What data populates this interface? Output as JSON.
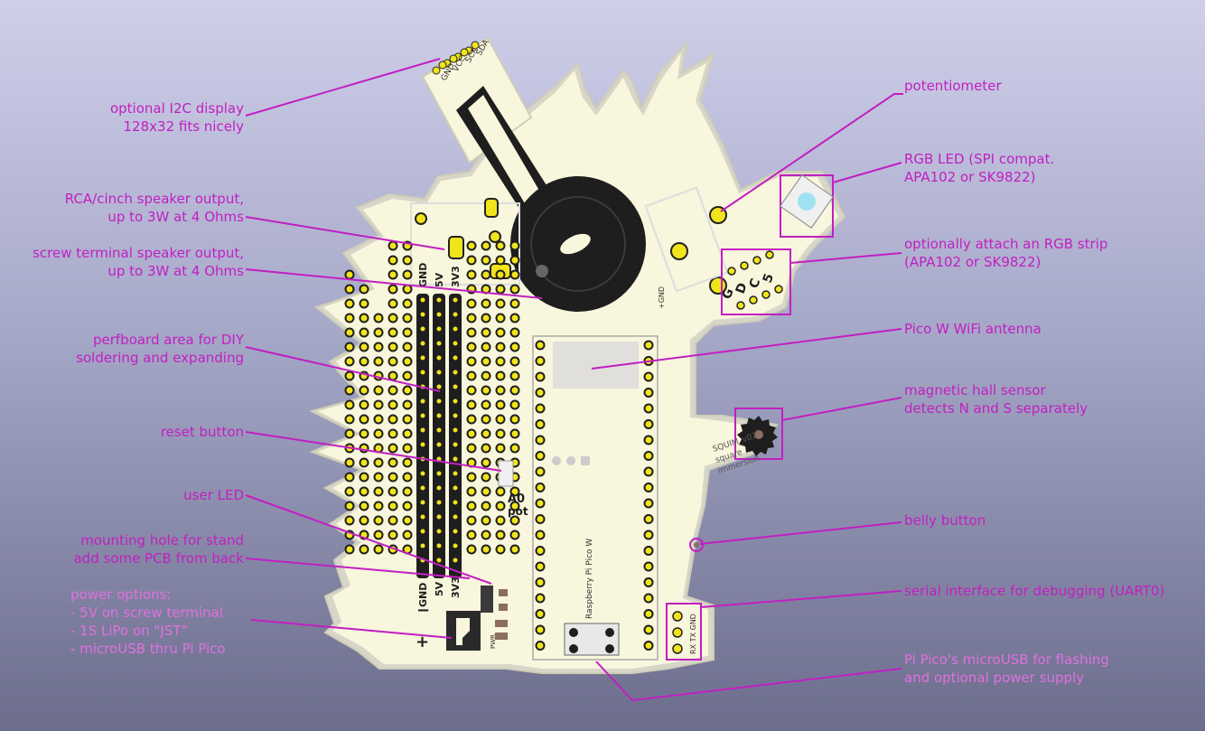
{
  "colors": {
    "annotation": "#c21fc2",
    "board": "#f8f6dc",
    "pad": "#f1e41b",
    "silkscreen": "#1e1e1e"
  },
  "board_silkscreen": {
    "i2c_pins": [
      "SDA",
      "SCK",
      "VCC",
      "GND"
    ],
    "rail_labels": [
      "GND",
      "5V",
      "3V3"
    ],
    "strip_labels": [
      "G",
      "D",
      "C",
      "5"
    ],
    "plus": "+",
    "minus": "−",
    "a0_label": "A0",
    "pot_label": "pot",
    "pico_label": "Raspberry Pi Pico W",
    "gnd_label": "+GND",
    "project_text": [
      "SQUIM_v02",
      "square",
      "immersion"
    ],
    "uart_label": "RX TX GND",
    "pwr_label": "PWR"
  },
  "annotations": {
    "i2c": [
      "optional I2C display",
      "128x32 fits nicely"
    ],
    "rca": [
      "RCA/cinch speaker output,",
      "up to 3W at 4 Ohms"
    ],
    "screw": [
      "screw terminal speaker output,",
      "up to 3W at 4 Ohms"
    ],
    "perf": [
      "perfboard area for DIY",
      "soldering and expanding"
    ],
    "reset": [
      "reset button"
    ],
    "userled": [
      "user LED"
    ],
    "mount": [
      "mounting hole for stand",
      "add some PCB from back"
    ],
    "power": [
      "power options:",
      "- 5V on screw terminal",
      "- 1S LiPo on \"JST\"",
      "- microUSB thru Pi Pico"
    ],
    "pot": [
      "potentiometer"
    ],
    "rgb": [
      "RGB LED (SPI compat.",
      " APA102 or SK9822)"
    ],
    "strip": [
      "optionally attach an RGB strip",
      "(APA102 or SK9822)"
    ],
    "antenna": [
      "Pico W WiFi antenna"
    ],
    "hall": [
      "magnetic hall sensor",
      "detects N and S separately"
    ],
    "belly": [
      "belly button"
    ],
    "serial": [
      "serial interface for debugging (UART0)"
    ],
    "usb": [
      "Pi Pico's microUSB for flashing",
      "and optional power supply"
    ]
  }
}
